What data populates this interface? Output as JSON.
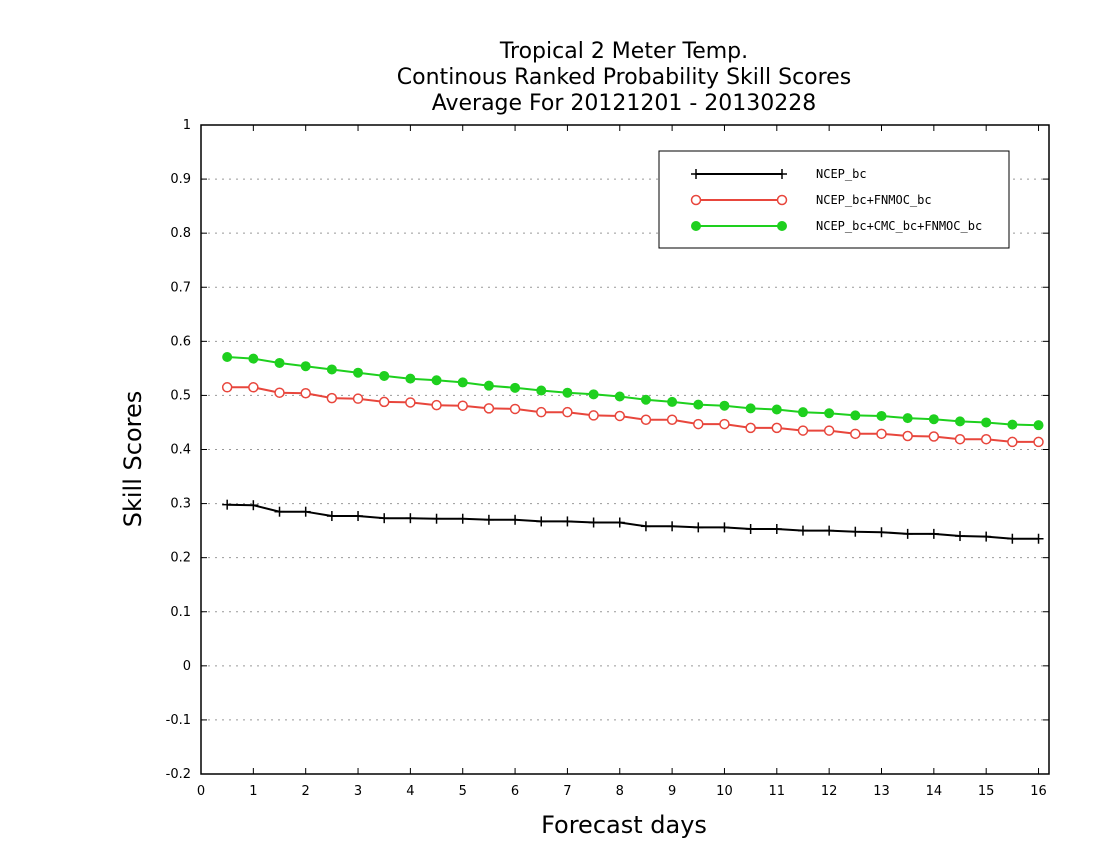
{
  "chart_data": {
    "type": "line",
    "title": [
      "Tropical 2 Meter Temp.",
      "Continous Ranked Probability Skill Scores",
      "Average For 20121201 - 20130228"
    ],
    "xlabel": "Forecast days",
    "ylabel": "Skill Scores",
    "xlim": [
      0,
      16.2
    ],
    "ylim": [
      -0.2,
      1
    ],
    "xticks": [
      0,
      1,
      2,
      3,
      4,
      5,
      6,
      7,
      8,
      9,
      10,
      11,
      12,
      13,
      14,
      15,
      16
    ],
    "xtick_labels": [
      "0",
      "1",
      "2",
      "3",
      "4",
      "5",
      "6",
      "7",
      "8",
      "9",
      "10",
      "11",
      "12",
      "13",
      "14",
      "15",
      "16"
    ],
    "yticks": [
      -0.2,
      -0.1,
      0,
      0.1,
      0.2,
      0.3,
      0.4,
      0.5,
      0.6,
      0.7,
      0.8,
      0.9,
      1
    ],
    "ytick_labels": [
      "-0.2",
      "-0.1",
      "0",
      "0.1",
      "0.2",
      "0.3",
      "0.4",
      "0.5",
      "0.6",
      "0.7",
      "0.8",
      "0.9",
      "1"
    ],
    "grid": "horizontal-dotted",
    "legend_position": "top-right",
    "x": [
      0.5,
      1,
      1.5,
      2,
      2.5,
      3,
      3.5,
      4,
      4.5,
      5,
      5.5,
      6,
      6.5,
      7,
      7.5,
      8,
      8.5,
      9,
      9.5,
      10,
      10.5,
      11,
      11.5,
      12,
      12.5,
      13,
      13.5,
      14,
      14.5,
      15,
      15.5,
      16
    ],
    "series": [
      {
        "name": "NCEP_bc",
        "color": "#000000",
        "marker": "plus",
        "values": [
          0.298,
          0.297,
          0.285,
          0.285,
          0.277,
          0.277,
          0.273,
          0.273,
          0.272,
          0.272,
          0.27,
          0.27,
          0.267,
          0.267,
          0.265,
          0.265,
          0.258,
          0.258,
          0.256,
          0.256,
          0.253,
          0.253,
          0.25,
          0.25,
          0.248,
          0.247,
          0.244,
          0.244,
          0.24,
          0.239,
          0.235,
          0.235
        ]
      },
      {
        "name": "NCEP_bc+FNMOC_bc",
        "color": "#e8463c",
        "marker": "open-circle",
        "values": [
          0.515,
          0.515,
          0.505,
          0.504,
          0.495,
          0.494,
          0.488,
          0.487,
          0.482,
          0.481,
          0.476,
          0.475,
          0.469,
          0.469,
          0.463,
          0.462,
          0.455,
          0.455,
          0.447,
          0.447,
          0.44,
          0.44,
          0.435,
          0.435,
          0.429,
          0.429,
          0.425,
          0.424,
          0.419,
          0.419,
          0.414,
          0.414
        ]
      },
      {
        "name": "NCEP_bc+CMC_bc+FNMOC_bc",
        "color": "#1ed01e",
        "marker": "filled-circle",
        "values": [
          0.571,
          0.568,
          0.56,
          0.554,
          0.548,
          0.542,
          0.536,
          0.531,
          0.528,
          0.524,
          0.518,
          0.514,
          0.509,
          0.505,
          0.502,
          0.498,
          0.492,
          0.488,
          0.483,
          0.481,
          0.476,
          0.474,
          0.469,
          0.467,
          0.463,
          0.462,
          0.458,
          0.456,
          0.452,
          0.45,
          0.446,
          0.445
        ]
      }
    ]
  }
}
